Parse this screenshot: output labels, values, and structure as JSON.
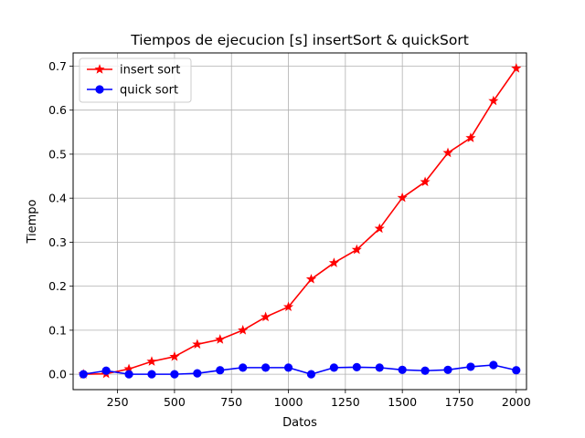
{
  "chart_data": {
    "type": "line",
    "title": "Tiempos de ejecucion [s] insertSort & quickSort",
    "xlabel": "Datos",
    "ylabel": "Tiempo",
    "xlim": [
      55,
      2045
    ],
    "ylim": [
      -0.035,
      0.73
    ],
    "xticks": [
      250,
      500,
      750,
      1000,
      1250,
      1500,
      1750,
      2000
    ],
    "yticks": [
      0.0,
      0.1,
      0.2,
      0.3,
      0.4,
      0.5,
      0.6,
      0.7
    ],
    "grid": true,
    "legend_position": "top-left",
    "x": [
      100,
      200,
      300,
      400,
      500,
      600,
      700,
      800,
      900,
      1000,
      1100,
      1200,
      1300,
      1400,
      1500,
      1600,
      1700,
      1800,
      1900,
      2000
    ],
    "series": [
      {
        "name": "insert sort",
        "color": "#ff0000",
        "marker": "star",
        "values": [
          0.0,
          0.001,
          0.012,
          0.029,
          0.04,
          0.068,
          0.079,
          0.1,
          0.13,
          0.153,
          0.216,
          0.253,
          0.283,
          0.331,
          0.401,
          0.437,
          0.503,
          0.537,
          0.621,
          0.695
        ]
      },
      {
        "name": "quick sort",
        "color": "#0000ff",
        "marker": "circle",
        "values": [
          0.0,
          0.008,
          0.0,
          0.0,
          0.0,
          0.002,
          0.009,
          0.015,
          0.015,
          0.015,
          0.0,
          0.015,
          0.016,
          0.015,
          0.01,
          0.008,
          0.01,
          0.017,
          0.021,
          0.009
        ]
      }
    ]
  }
}
